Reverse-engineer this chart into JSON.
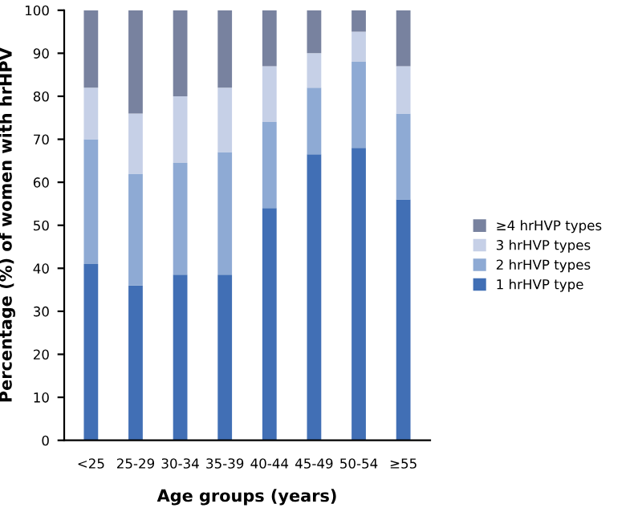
{
  "chart_data": {
    "type": "bar",
    "stacked": true,
    "xlabel": "Age groups (years)",
    "ylabel": "Percentage (%) of women with hrHPV",
    "categories": [
      "<25",
      "25-29",
      "30-34",
      "35-39",
      "40-44",
      "45-49",
      "50-54",
      "≥55"
    ],
    "series": [
      {
        "name": "1 hrHVP type",
        "color": "#416fb5",
        "values": [
          41,
          36,
          38.5,
          38.5,
          54,
          66.5,
          68,
          56
        ]
      },
      {
        "name": "2 hrHVP types",
        "color": "#8eaad4",
        "values": [
          29,
          26,
          26,
          28.5,
          20,
          15.5,
          20,
          20
        ]
      },
      {
        "name": "3 hrHVP types",
        "color": "#c6d0e7",
        "values": [
          12,
          14,
          15.5,
          15,
          13,
          8,
          7,
          11
        ]
      },
      {
        "name": "≥4 hrHVP types",
        "color": "#78829f",
        "values": [
          18,
          24,
          20,
          18,
          13,
          10,
          5,
          13
        ]
      }
    ],
    "ylim": [
      0,
      100
    ],
    "yticks": [
      0,
      10,
      20,
      30,
      40,
      50,
      60,
      70,
      80,
      90,
      100
    ],
    "grid": false,
    "legend": "right"
  }
}
